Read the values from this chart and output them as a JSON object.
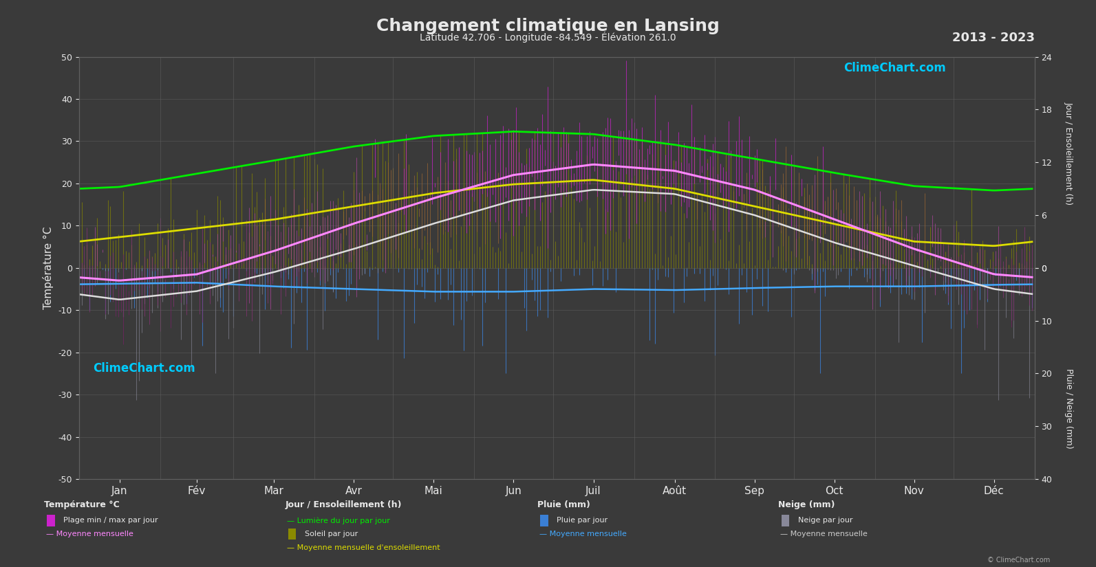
{
  "title": "Changement climatique en Lansing",
  "subtitle": "Latitude 42.706 - Longitude -84.549 - Élévation 261.0",
  "year_range": "2013 - 2023",
  "bg_color": "#3a3a3a",
  "text_color": "#e8e8e8",
  "grid_color": "#606060",
  "months": [
    "Jan",
    "Fév",
    "Mar",
    "Avr",
    "Mai",
    "Jun",
    "Juil",
    "Août",
    "Sep",
    "Oct",
    "Nov",
    "Déc"
  ],
  "days_in_month": [
    31,
    28,
    31,
    30,
    31,
    30,
    31,
    31,
    30,
    31,
    30,
    31
  ],
  "left_ylabel": "Température °C",
  "right_ylabel_top": "Jour / Ensoleillement (h)",
  "right_ylabel_bottom": "Pluie / Neige (mm)",
  "left_ylim": [
    -50,
    50
  ],
  "left_yticks": [
    -50,
    -40,
    -30,
    -20,
    -10,
    0,
    10,
    20,
    30,
    40,
    50
  ],
  "right_top_ticks": [
    0,
    6,
    12,
    18,
    24
  ],
  "right_bot_ticks": [
    0,
    10,
    20,
    30,
    40
  ],
  "temp_max_monthly": [
    1.5,
    3.5,
    9.5,
    16.5,
    23.0,
    28.5,
    30.5,
    29.0,
    24.5,
    17.0,
    8.0,
    2.5
  ],
  "temp_min_monthly": [
    -7.5,
    -5.5,
    -1.0,
    4.5,
    10.5,
    16.0,
    18.5,
    17.5,
    12.5,
    6.0,
    0.5,
    -5.0
  ],
  "temp_mean_monthly": [
    -3.0,
    -1.5,
    4.0,
    10.5,
    16.5,
    22.0,
    24.5,
    23.0,
    18.5,
    11.5,
    4.5,
    -1.5
  ],
  "temp_mean_min_monthly": [
    -7.5,
    -5.5,
    -1.0,
    4.5,
    10.5,
    16.0,
    18.5,
    17.5,
    12.5,
    6.0,
    0.5,
    -5.0
  ],
  "daylight_monthly": [
    9.2,
    10.7,
    12.2,
    13.8,
    15.0,
    15.5,
    15.2,
    14.0,
    12.4,
    10.8,
    9.3,
    8.8
  ],
  "sunshine_monthly": [
    3.5,
    4.5,
    5.5,
    7.0,
    8.5,
    9.5,
    10.0,
    9.0,
    7.0,
    5.0,
    3.0,
    2.5
  ],
  "rain_daily_mm": [
    2.5,
    2.2,
    2.8,
    3.2,
    3.5,
    3.8,
    3.5,
    3.5,
    3.2,
    3.0,
    3.0,
    2.8
  ],
  "rain_mean_monthly_mm": [
    3.0,
    2.8,
    3.5,
    4.0,
    4.5,
    4.5,
    4.0,
    4.2,
    3.8,
    3.5,
    3.5,
    3.2
  ],
  "snow_daily_mm": [
    8.0,
    6.0,
    4.0,
    0.5,
    0.0,
    0.0,
    0.0,
    0.0,
    0.0,
    0.5,
    4.0,
    7.0
  ],
  "snow_mean_monthly_mm": [
    10.0,
    8.0,
    5.0,
    1.0,
    0.0,
    0.0,
    0.0,
    0.0,
    0.0,
    1.0,
    5.0,
    9.0
  ],
  "logo_text": "ClimeChart.com",
  "copyright_text": "© ClimeChart.com"
}
